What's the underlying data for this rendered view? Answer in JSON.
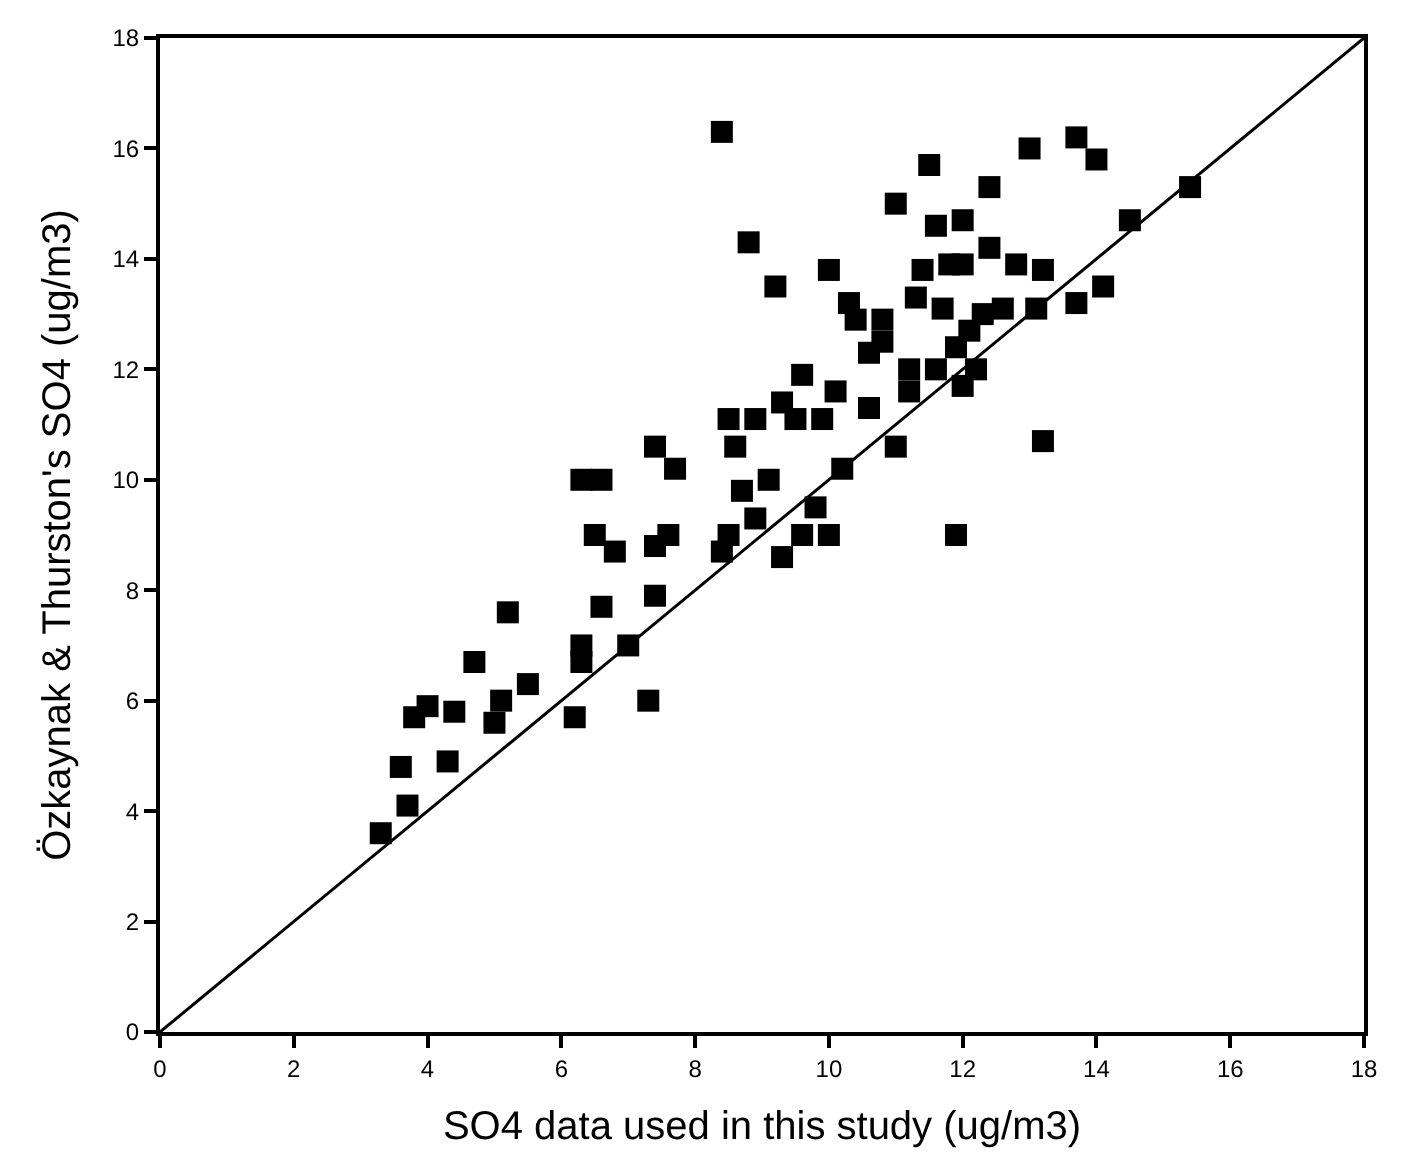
{
  "chart_data": {
    "type": "scatter",
    "xlabel": "SO4 data used in this study (ug/m3)",
    "ylabel": "Özkaynak & Thurston's SO4 (ug/m3)",
    "xlim": [
      0,
      18
    ],
    "ylim": [
      0,
      18
    ],
    "xticks": [
      0,
      2,
      4,
      6,
      8,
      10,
      12,
      14,
      16,
      18
    ],
    "yticks": [
      0,
      2,
      4,
      6,
      8,
      10,
      12,
      14,
      16,
      18
    ],
    "marker": "square",
    "series": [
      {
        "color": "#000000",
        "x": [
          3.3,
          3.7,
          3.6,
          3.8,
          4.0,
          4.3,
          4.4,
          4.7,
          5.0,
          5.1,
          5.2,
          5.5,
          6.2,
          6.3,
          6.3,
          6.3,
          6.5,
          6.6,
          6.6,
          6.8,
          7.0,
          7.3,
          7.4,
          7.4,
          7.4,
          7.6,
          7.7,
          8.4,
          8.4,
          8.5,
          8.5,
          8.6,
          8.7,
          8.8,
          8.9,
          8.9,
          9.1,
          9.3,
          9.3,
          9.2,
          9.5,
          9.6,
          9.6,
          9.8,
          9.9,
          10.0,
          10.0,
          10.1,
          10.2,
          10.3,
          10.4,
          10.6,
          10.6,
          10.8,
          10.8,
          11.0,
          11.0,
          11.2,
          11.2,
          11.3,
          11.4,
          11.5,
          11.6,
          11.6,
          11.7,
          11.8,
          11.9,
          12.0,
          12.0,
          11.9,
          12.0,
          12.1,
          12.2,
          12.3,
          12.4,
          12.4,
          12.6,
          12.8,
          13.0,
          13.1,
          13.2,
          13.2,
          13.7,
          13.7,
          14.0,
          14.1,
          14.5,
          15.4
        ],
        "values": [
          3.6,
          4.1,
          4.8,
          5.7,
          5.9,
          4.9,
          5.8,
          6.7,
          5.6,
          6.0,
          7.6,
          6.3,
          5.7,
          6.7,
          7.0,
          10.0,
          9.0,
          7.7,
          10.0,
          8.7,
          7.0,
          6.0,
          7.9,
          8.8,
          10.6,
          9.0,
          10.2,
          16.3,
          8.7,
          11.1,
          9.0,
          10.6,
          9.8,
          14.3,
          9.3,
          11.1,
          10.0,
          11.4,
          8.6,
          13.5,
          11.1,
          11.9,
          9.0,
          9.5,
          11.1,
          9.0,
          13.8,
          11.6,
          10.2,
          13.2,
          12.9,
          12.3,
          11.3,
          12.5,
          12.9,
          15.0,
          10.6,
          12.0,
          11.6,
          13.3,
          13.8,
          15.7,
          12.0,
          14.6,
          13.1,
          13.9,
          12.4,
          14.7,
          13.9,
          9.0,
          11.7,
          12.7,
          12.0,
          13.0,
          14.2,
          15.3,
          13.1,
          13.9,
          16.0,
          13.1,
          13.8,
          10.7,
          16.2,
          13.2,
          15.8,
          13.5,
          14.7,
          15.3
        ]
      },
      {
        "type": "line",
        "color": "#000000",
        "x": [
          0,
          18
        ],
        "values": [
          0,
          18
        ],
        "marker": "none",
        "line_style": "solid"
      }
    ]
  }
}
